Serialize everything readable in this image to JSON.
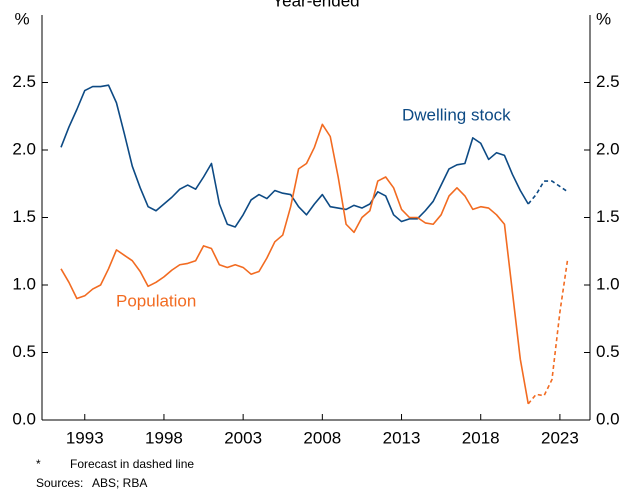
{
  "chart_data": {
    "type": "line",
    "title": "Year-ended",
    "y_unit": "%",
    "x": [
      1991.5,
      1992,
      1992.5,
      1993,
      1993.5,
      1994,
      1994.5,
      1995,
      1995.5,
      1996,
      1996.5,
      1997,
      1997.5,
      1998,
      1998.5,
      1999,
      1999.5,
      2000,
      2000.5,
      2001,
      2001.5,
      2002,
      2002.5,
      2003,
      2003.5,
      2004,
      2004.5,
      2005,
      2005.5,
      2006,
      2006.5,
      2007,
      2007.5,
      2008,
      2008.5,
      2009,
      2009.5,
      2010,
      2010.5,
      2011,
      2011.5,
      2012,
      2012.5,
      2013,
      2013.5,
      2014,
      2014.5,
      2015,
      2015.5,
      2016,
      2016.5,
      2017,
      2017.5,
      2018,
      2018.5,
      2019,
      2019.5,
      2020,
      2020.5,
      2021,
      2021.5,
      2022,
      2022.5,
      2023,
      2023.5
    ],
    "series": [
      {
        "name": "Dwelling stock",
        "color": "#0d4a84",
        "values": [
          2.02,
          2.17,
          2.3,
          2.44,
          2.47,
          2.47,
          2.48,
          2.35,
          2.12,
          1.88,
          1.72,
          1.58,
          1.55,
          1.6,
          1.65,
          1.71,
          1.74,
          1.71,
          1.8,
          1.9,
          1.6,
          1.45,
          1.43,
          1.52,
          1.63,
          1.67,
          1.64,
          1.7,
          1.68,
          1.67,
          1.58,
          1.52,
          1.6,
          1.67,
          1.58,
          1.57,
          1.56,
          1.59,
          1.57,
          1.6,
          1.69,
          1.66,
          1.52,
          1.47,
          1.49,
          1.49,
          1.55,
          1.62,
          1.74,
          1.86,
          1.89,
          1.9,
          2.09,
          2.05,
          1.93,
          1.98,
          1.96,
          1.82,
          1.7,
          1.6,
          null,
          null,
          null,
          null,
          null
        ],
        "forecast_values": [
          null,
          null,
          null,
          null,
          null,
          null,
          null,
          null,
          null,
          null,
          null,
          null,
          null,
          null,
          null,
          null,
          null,
          null,
          null,
          null,
          null,
          null,
          null,
          null,
          null,
          null,
          null,
          null,
          null,
          null,
          null,
          null,
          null,
          null,
          null,
          null,
          null,
          null,
          null,
          null,
          null,
          null,
          null,
          null,
          null,
          null,
          null,
          null,
          null,
          null,
          null,
          null,
          null,
          null,
          null,
          null,
          null,
          null,
          null,
          1.6,
          1.67,
          1.77,
          1.77,
          1.73,
          1.69
        ]
      },
      {
        "name": "Population",
        "color": "#f26b21",
        "values": [
          1.12,
          1.02,
          0.9,
          0.92,
          0.97,
          1.0,
          1.12,
          1.26,
          1.22,
          1.18,
          1.1,
          0.99,
          1.02,
          1.06,
          1.11,
          1.15,
          1.16,
          1.18,
          1.29,
          1.27,
          1.15,
          1.13,
          1.15,
          1.13,
          1.08,
          1.1,
          1.2,
          1.32,
          1.37,
          1.58,
          1.86,
          1.9,
          2.02,
          2.19,
          2.1,
          1.8,
          1.45,
          1.39,
          1.5,
          1.55,
          1.77,
          1.8,
          1.72,
          1.56,
          1.5,
          1.5,
          1.46,
          1.45,
          1.52,
          1.66,
          1.72,
          1.66,
          1.56,
          1.58,
          1.57,
          1.52,
          1.45,
          0.95,
          0.45,
          0.12,
          null,
          null,
          null,
          null,
          null
        ],
        "forecast_values": [
          null,
          null,
          null,
          null,
          null,
          null,
          null,
          null,
          null,
          null,
          null,
          null,
          null,
          null,
          null,
          null,
          null,
          null,
          null,
          null,
          null,
          null,
          null,
          null,
          null,
          null,
          null,
          null,
          null,
          null,
          null,
          null,
          null,
          null,
          null,
          null,
          null,
          null,
          null,
          null,
          null,
          null,
          null,
          null,
          null,
          null,
          null,
          null,
          null,
          null,
          null,
          null,
          null,
          null,
          null,
          null,
          null,
          null,
          null,
          0.12,
          0.19,
          0.18,
          0.3,
          0.8,
          1.2
        ]
      }
    ],
    "xlim": [
      1990.3,
      2024.9
    ],
    "xticks": [
      1993,
      1998,
      2003,
      2008,
      2013,
      2018,
      2023
    ],
    "ylim": [
      0,
      3
    ],
    "yticks": [
      {
        "value": 0,
        "label": "0.0"
      },
      0.5,
      {
        "value": 1,
        "label": "1.0"
      },
      1.5,
      {
        "value": 2,
        "label": "2.0"
      },
      2.5
    ],
    "grid": false,
    "footnote_marker": "*",
    "footnote": "Forecast in dashed line",
    "sources_label": "Sources:",
    "sources": "ABS; RBA"
  }
}
